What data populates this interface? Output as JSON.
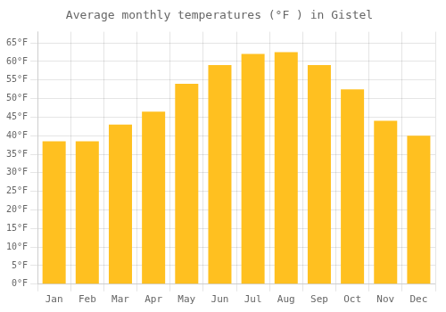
{
  "chart_data": {
    "type": "bar",
    "title": "Average monthly temperatures (°F ) in Gistel",
    "categories": [
      "Jan",
      "Feb",
      "Mar",
      "Apr",
      "May",
      "Jun",
      "Jul",
      "Aug",
      "Sep",
      "Oct",
      "Nov",
      "Dec"
    ],
    "values": [
      38.5,
      38.5,
      43.0,
      46.5,
      54.0,
      59.0,
      62.0,
      62.5,
      59.0,
      52.5,
      44.0,
      40.0
    ],
    "color": "#FFC020",
    "ylim": [
      0,
      68
    ],
    "yticks": [
      {
        "value": 0,
        "label": "0°F"
      },
      {
        "value": 5,
        "label": "5°F"
      },
      {
        "value": 10,
        "label": "10°F"
      },
      {
        "value": 15,
        "label": "15°F"
      },
      {
        "value": 20,
        "label": "20°F"
      },
      {
        "value": 25,
        "label": "25°F"
      },
      {
        "value": 30,
        "label": "30°F"
      },
      {
        "value": 35,
        "label": "35°F"
      },
      {
        "value": 40,
        "label": "40°F"
      },
      {
        "value": 45,
        "label": "45°F"
      },
      {
        "value": 50,
        "label": "50°F"
      },
      {
        "value": 55,
        "label": "55°F"
      },
      {
        "value": 60,
        "label": "60°F"
      },
      {
        "value": 65,
        "label": "65°F"
      }
    ],
    "grid": true
  }
}
